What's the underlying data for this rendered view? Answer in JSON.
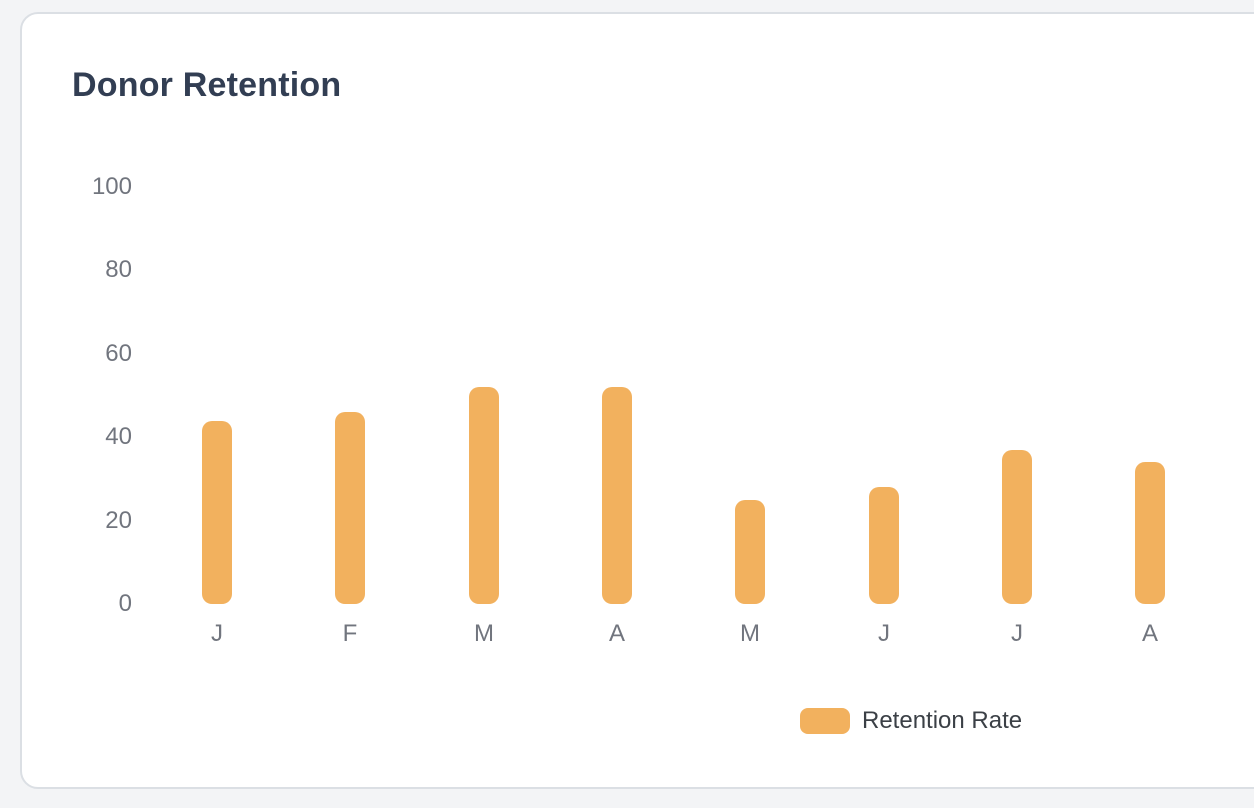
{
  "card": {
    "title": "Donor Retention"
  },
  "legend": {
    "label": "Retention Rate"
  },
  "colors": {
    "page_background": "#F3F4F6",
    "card_background": "#FFFFFF",
    "card_border": "#DBDFE4",
    "title_text": "#323E53",
    "axis_text": "#71757E",
    "legend_text": "#3B4046",
    "bar": "#F2B15E"
  },
  "chart_data": {
    "type": "bar",
    "title": "Donor Retention",
    "categories": [
      "J",
      "F",
      "M",
      "A",
      "M",
      "J",
      "J",
      "A"
    ],
    "series": [
      {
        "name": "Retention Rate",
        "values": [
          44,
          46,
          52,
          52,
          25,
          28,
          37,
          34
        ]
      }
    ],
    "xlabel": "",
    "ylabel": "",
    "ylim": [
      0,
      100
    ],
    "yticks": [
      0,
      20,
      40,
      60,
      80,
      100
    ],
    "grid": false,
    "legend_position": "bottom",
    "bar_color": "#F2B15E"
  }
}
